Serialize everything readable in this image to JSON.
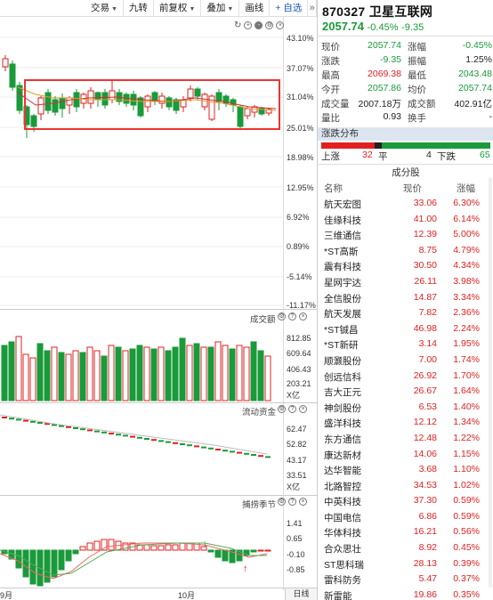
{
  "toolbar": {
    "items": [
      "交易",
      "九转",
      "前复权",
      "叠加",
      "画线"
    ],
    "add_watch": "+ 自选",
    "more": "»"
  },
  "main_chart": {
    "y_axis": [
      "43.10%",
      "37.07%",
      "31.04%",
      "25.01%",
      "18.98%",
      "12.95%",
      "6.92%",
      "0.89%",
      "-5.14%",
      "-11.17%"
    ]
  },
  "volume_panel": {
    "title": "成交额",
    "y_axis": [
      "812.85",
      "609.64",
      "406.43",
      "203.21",
      "X亿"
    ]
  },
  "fund_panel": {
    "title": "流动资金",
    "y_axis": [
      "62.47",
      "52.82",
      "43.17",
      "33.51",
      "X亿"
    ]
  },
  "season_panel": {
    "title": "捕捞季节",
    "y_axis": [
      "1.41",
      "0.65",
      "-0.10",
      "-0.85"
    ]
  },
  "bottom_bar": {
    "month_left": "9月",
    "month_right": "10月",
    "period_button": "日线"
  },
  "stock": {
    "code": "870327",
    "name": "卫星互联网",
    "price": "2057.74",
    "change_pct": "-0.45%",
    "change": "-9.35"
  },
  "quote": [
    {
      "l1": "现价",
      "v1": "2057.74",
      "c1": "green",
      "l2": "涨幅",
      "v2": "-0.45%",
      "c2": "green"
    },
    {
      "l1": "涨跌",
      "v1": "-9.35",
      "c1": "green",
      "l2": "振幅",
      "v2": "1.25%",
      "c2": ""
    },
    {
      "l1": "最高",
      "v1": "2069.38",
      "c1": "red",
      "l2": "最低",
      "v2": "2043.48",
      "c2": "green"
    },
    {
      "l1": "今开",
      "v1": "2057.86",
      "c1": "green",
      "l2": "均价",
      "v2": "2057.74",
      "c2": "green"
    },
    {
      "l1": "成交量",
      "v1": "2007.18万",
      "c1": "",
      "l2": "成交额",
      "v2": "402.91亿",
      "c2": ""
    },
    {
      "l1": "量比",
      "v1": "0.93",
      "c1": "",
      "l2": "换手",
      "v2": "-",
      "c2": ""
    }
  ],
  "distribution": {
    "title": "涨跌分布",
    "up_label": "上涨",
    "up_count": "32",
    "flat_label": "平",
    "flat_count": "4",
    "down_label": "下跌",
    "down_count": "65",
    "up": 32,
    "flat": 4,
    "down": 65
  },
  "constituents": {
    "title": "成分股",
    "headers": {
      "name": "名称",
      "price": "现价",
      "change": "涨幅"
    },
    "rows": [
      {
        "name": "航天宏图",
        "price": "33.06",
        "change": "6.30%"
      },
      {
        "name": "佳缘科技",
        "price": "41.00",
        "change": "6.14%"
      },
      {
        "name": "三维通信",
        "price": "12.39",
        "change": "5.00%"
      },
      {
        "name": "*ST高斯",
        "price": "8.75",
        "change": "4.79%"
      },
      {
        "name": "震有科技",
        "price": "30.50",
        "change": "4.34%"
      },
      {
        "name": "星网宇达",
        "price": "26.11",
        "change": "3.98%"
      },
      {
        "name": "全信股份",
        "price": "14.87",
        "change": "3.34%"
      },
      {
        "name": "航天发展",
        "price": "7.82",
        "change": "2.36%"
      },
      {
        "name": "*ST铖昌",
        "price": "46.98",
        "change": "2.24%"
      },
      {
        "name": "*ST新研",
        "price": "3.14",
        "change": "1.95%"
      },
      {
        "name": "顺灏股份",
        "price": "7.00",
        "change": "1.74%"
      },
      {
        "name": "创远信科",
        "price": "26.92",
        "change": "1.70%"
      },
      {
        "name": "吉大正元",
        "price": "26.67",
        "change": "1.64%"
      },
      {
        "name": "神剑股份",
        "price": "6.53",
        "change": "1.40%"
      },
      {
        "name": "盛洋科技",
        "price": "12.12",
        "change": "1.34%"
      },
      {
        "name": "东方通信",
        "price": "12.48",
        "change": "1.22%"
      },
      {
        "name": "康达新材",
        "price": "14.06",
        "change": "1.15%"
      },
      {
        "name": "达华智能",
        "price": "3.68",
        "change": "1.10%"
      },
      {
        "name": "北路智控",
        "price": "34.53",
        "change": "1.02%"
      },
      {
        "name": "中英科技",
        "price": "37.30",
        "change": "0.59%"
      },
      {
        "name": "中国电信",
        "price": "6.86",
        "change": "0.59%"
      },
      {
        "name": "华体科技",
        "price": "16.21",
        "change": "0.56%"
      },
      {
        "name": "合众思壮",
        "price": "8.92",
        "change": "0.45%"
      },
      {
        "name": "ST思科瑞",
        "price": "28.13",
        "change": "0.39%"
      },
      {
        "name": "雷科防务",
        "price": "5.47",
        "change": "0.37%"
      },
      {
        "name": "新雷能",
        "price": "19.86",
        "change": "0.35%"
      }
    ]
  },
  "colors": {
    "up": "#e21f1f",
    "down": "#1a9a3a",
    "flat": "#222222"
  }
}
